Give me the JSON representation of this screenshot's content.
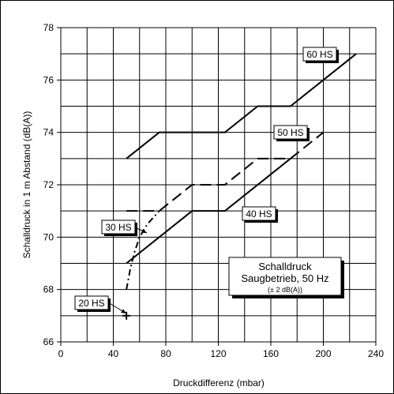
{
  "chart_data": {
    "type": "line",
    "title": "",
    "xlabel": "Druckdifferenz (mbar)",
    "ylabel": "Schalldruck in 1 m Abstand (dB(A))",
    "xlim": [
      0,
      240
    ],
    "ylim": [
      66,
      78
    ],
    "xticks": [
      0,
      40,
      80,
      120,
      160,
      200,
      240
    ],
    "yticks": [
      66,
      68,
      70,
      72,
      74,
      76,
      78
    ],
    "grid": true,
    "series": [
      {
        "name": "60 HS",
        "style": "solid",
        "points": [
          [
            50,
            73
          ],
          [
            75,
            74
          ],
          [
            125,
            74
          ],
          [
            150,
            75
          ],
          [
            175,
            75
          ],
          [
            225,
            77
          ]
        ]
      },
      {
        "name": "50 HS",
        "style": "dashed",
        "points": [
          [
            50,
            71
          ],
          [
            75,
            71
          ],
          [
            100,
            72
          ],
          [
            125,
            72
          ],
          [
            150,
            73
          ],
          [
            175,
            73
          ],
          [
            200,
            74
          ]
        ]
      },
      {
        "name": "40 HS",
        "style": "solid",
        "points": [
          [
            50,
            69
          ],
          [
            100,
            71
          ],
          [
            125,
            71
          ],
          [
            175,
            73
          ]
        ]
      },
      {
        "name": "30 HS",
        "style": "dashdot",
        "points": [
          [
            50,
            68
          ],
          [
            53,
            68.8
          ],
          [
            56,
            69.4
          ],
          [
            60,
            70.0
          ],
          [
            66,
            70.5
          ],
          [
            75,
            71
          ]
        ]
      },
      {
        "name": "20 HS",
        "style": "marker",
        "points": [
          [
            50,
            67
          ]
        ]
      }
    ],
    "series_labels": [
      {
        "text": "60 HS"
      },
      {
        "text": "50 HS"
      },
      {
        "text": "40 HS"
      },
      {
        "text": "30 HS"
      },
      {
        "text": "20 HS"
      }
    ],
    "annotation": {
      "line1": "Schalldruck",
      "line2": "Saugbetrieb, 50 Hz",
      "line3": "(± 2 dB(A))"
    },
    "colors": {
      "line": "#000000",
      "grid": "#000000",
      "background": "#ffffff"
    }
  }
}
